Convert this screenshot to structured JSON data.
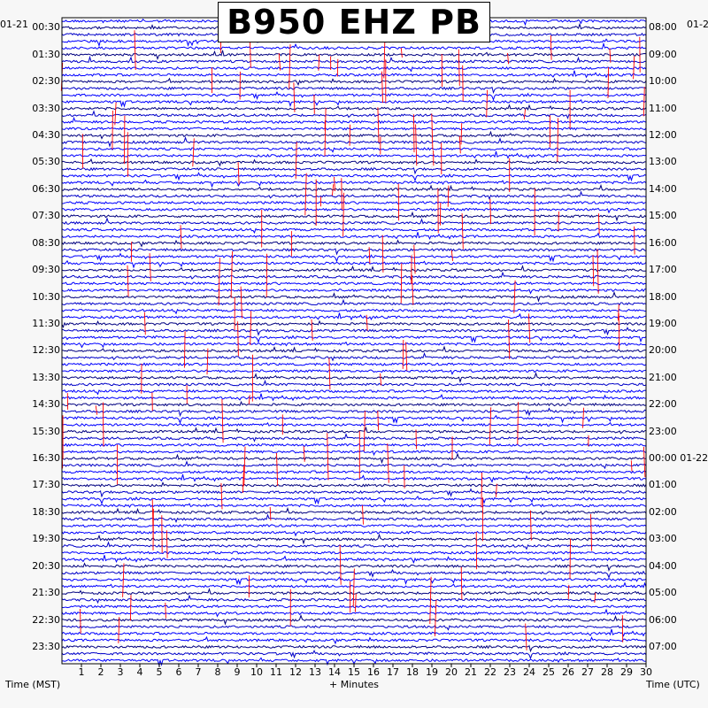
{
  "title": "B950 EHZ PB",
  "chart_data": {
    "type": "seismogram",
    "title": "B950 EHZ PB",
    "xlabel": "+ Minutes",
    "ylabel_left": "Time (MST)",
    "ylabel_right": "Time (UTC)",
    "date_left": "01-21",
    "date_right": "01-22",
    "date_right_start": "01-2",
    "xlim": [
      0,
      30
    ],
    "x_ticks": [
      1,
      2,
      3,
      4,
      5,
      6,
      7,
      8,
      9,
      10,
      11,
      12,
      13,
      14,
      15,
      16,
      17,
      18,
      19,
      20,
      21,
      22,
      23,
      24,
      25,
      26,
      27,
      28,
      29,
      30
    ],
    "rows_per_hour": 4,
    "left_hour_labels": [
      "00:30",
      "01:30",
      "02:30",
      "03:30",
      "04:30",
      "05:30",
      "06:30",
      "07:30",
      "08:30",
      "09:30",
      "10:30",
      "11:30",
      "12:30",
      "13:30",
      "14:30",
      "15:30",
      "16:30",
      "17:30",
      "18:30",
      "19:30",
      "20:30",
      "21:30",
      "22:30",
      "23:30"
    ],
    "right_hour_labels": [
      "08:00",
      "09:00",
      "10:00",
      "11:00",
      "12:00",
      "13:00",
      "14:00",
      "15:00",
      "16:00",
      "17:00",
      "18:00",
      "19:00",
      "20:00",
      "21:00",
      "22:00",
      "23:00",
      "00:00",
      "01:00",
      "02:00",
      "03:00",
      "04:00",
      "05:00",
      "06:00",
      "07:00"
    ],
    "trace_colors": [
      "#0000ff",
      "#000080",
      "#0000c8",
      "#0000ff"
    ],
    "clip_color": "#ff0000",
    "gap_color": "#ffffff"
  }
}
